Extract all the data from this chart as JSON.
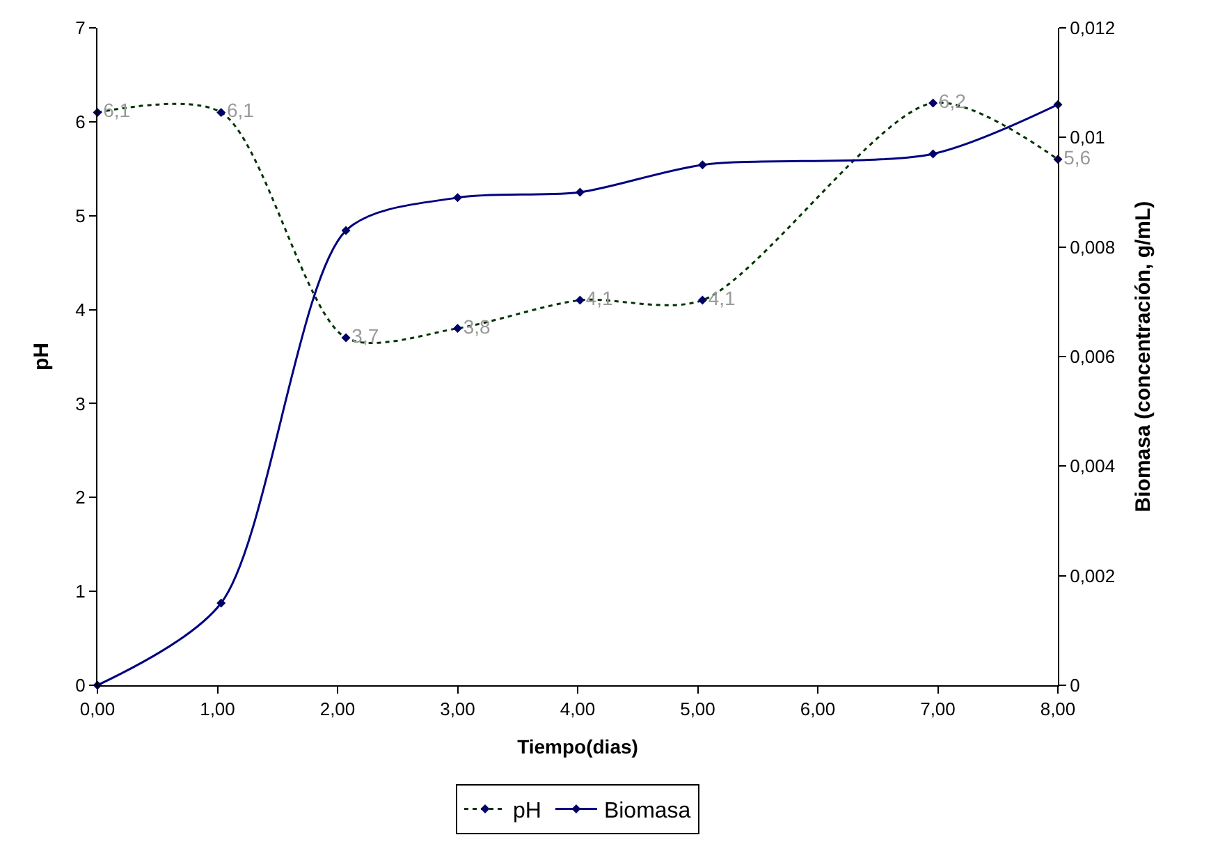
{
  "chart_data": {
    "type": "line",
    "xlabel": "Tiempo(dias)",
    "ylabel": "pH",
    "y2label": "Biomasa (concentración, g/mL)",
    "x": [
      0,
      1.03,
      2.07,
      3,
      4.02,
      5.04,
      6.96,
      8
    ],
    "series": [
      {
        "name": "pH",
        "color": "#003300",
        "values": [
          6.1,
          6.1,
          3.7,
          3.8,
          4.1,
          4.1,
          6.2,
          5.6
        ],
        "value_labels": [
          "6,1",
          "6,1",
          "3,7",
          "3,8",
          "4,1",
          "4,1",
          "6,2",
          "5,6"
        ],
        "line_style": "dotted"
      },
      {
        "name": "Biomasa",
        "color": "#000080",
        "axis": "y2",
        "values": [
          0,
          0.0015,
          0.0083,
          0.0089,
          0.009,
          0.0095,
          0.0097,
          0.0106
        ],
        "line_style": "solid"
      }
    ],
    "marker": "diamond",
    "legend": "bottom",
    "xlim": [
      0,
      8
    ],
    "xticks": [
      {
        "value": 0,
        "label": "0,00"
      },
      {
        "value": 1,
        "label": "1,00"
      },
      {
        "value": 2,
        "label": "2,00"
      },
      {
        "value": 3,
        "label": "3,00"
      },
      {
        "value": 4,
        "label": "4,00"
      },
      {
        "value": 5,
        "label": "5,00"
      },
      {
        "value": 6,
        "label": "6,00"
      },
      {
        "value": 7,
        "label": "7,00"
      },
      {
        "value": 8,
        "label": "8,00"
      }
    ],
    "ylim": [
      0,
      7
    ],
    "yticks": [
      0,
      1,
      2,
      3,
      4,
      5,
      6,
      7
    ],
    "y2lim": [
      0,
      0.012
    ],
    "y2ticks": [
      0,
      {
        "value": 0.002,
        "label": "0,002"
      },
      {
        "value": 0.004,
        "label": "0,004"
      },
      {
        "value": 0.006,
        "label": "0,006"
      },
      {
        "value": 0.008,
        "label": "0,008"
      },
      {
        "value": 0.01,
        "label": "0,01"
      },
      {
        "value": 0.012,
        "label": "0,012"
      }
    ]
  }
}
